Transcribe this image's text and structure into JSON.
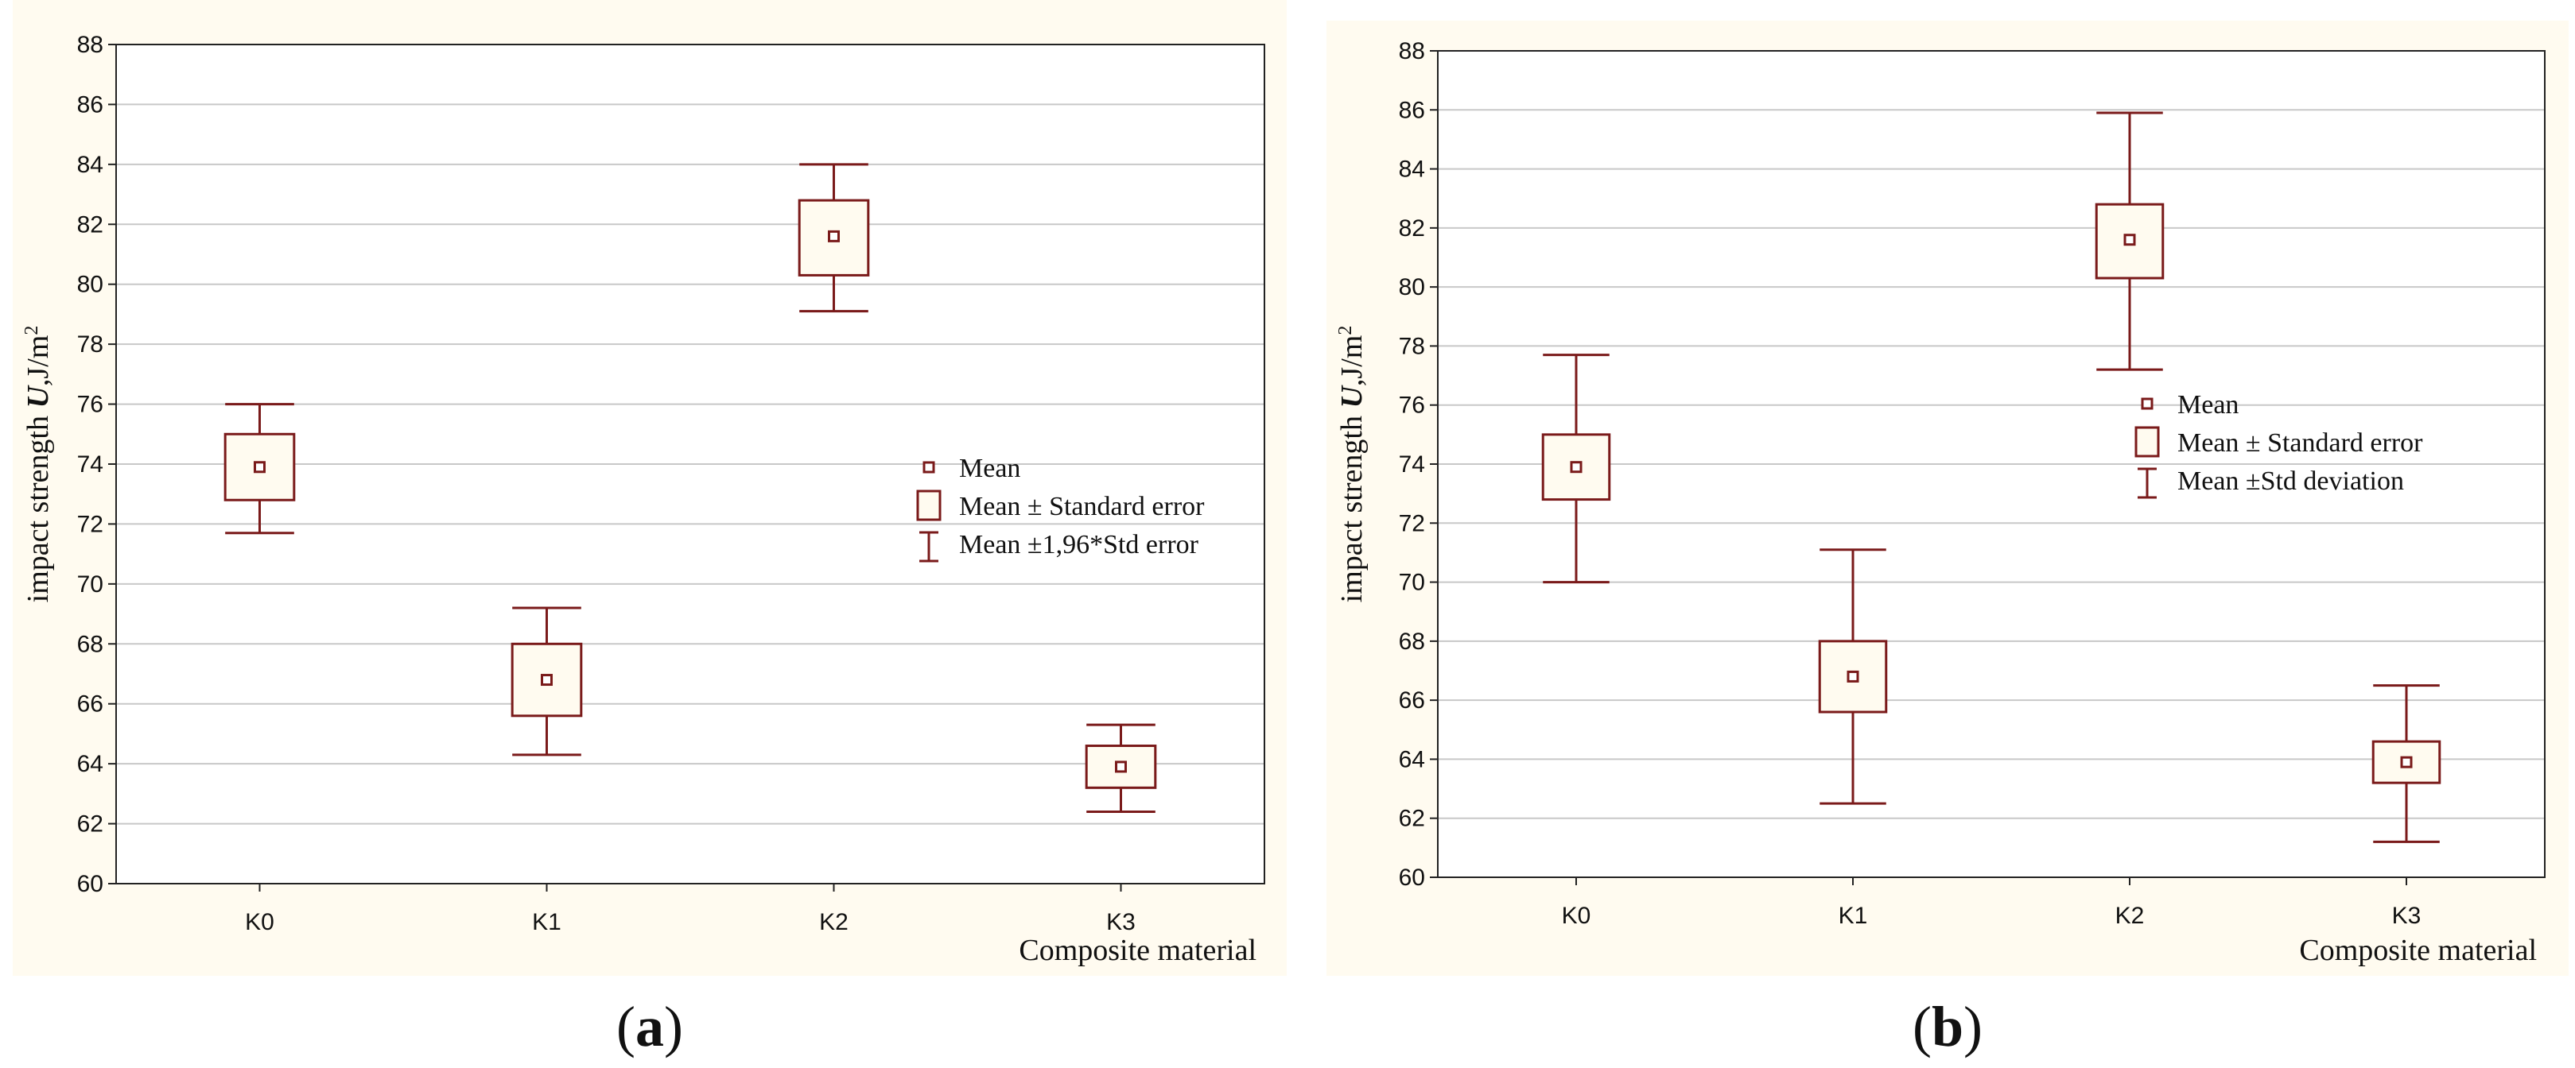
{
  "chart_data": [
    {
      "panel_label": "(a)",
      "type": "box",
      "title": "",
      "xlabel": "Composite material",
      "ylabel": {
        "prefix": "impact strength ",
        "var": "U",
        "unit": ",J/m",
        "sup": "2"
      },
      "categories": [
        "K0",
        "K1",
        "K2",
        "K3"
      ],
      "ylim": [
        60,
        88
      ],
      "yticks": [
        "60",
        "62",
        "64",
        "66",
        "68",
        "70",
        "72",
        "74",
        "76",
        "78",
        "80",
        "82",
        "84",
        "86",
        "88"
      ],
      "grid": true,
      "legend_position": "right",
      "legend": [
        "Mean",
        "Mean  ± Standard error",
        "Mean  ±1,96*Std error"
      ],
      "series": [
        {
          "category": "K0",
          "mean": 73.9,
          "box_low": 72.8,
          "box_high": 75.0,
          "whisker_low": 71.7,
          "whisker_high": 76.0
        },
        {
          "category": "K1",
          "mean": 66.8,
          "box_low": 65.6,
          "box_high": 68.0,
          "whisker_low": 64.3,
          "whisker_high": 69.2
        },
        {
          "category": "K2",
          "mean": 81.6,
          "box_low": 80.3,
          "box_high": 82.8,
          "whisker_low": 79.1,
          "whisker_high": 84.0
        },
        {
          "category": "K3",
          "mean": 63.9,
          "box_low": 63.2,
          "box_high": 64.6,
          "whisker_low": 62.4,
          "whisker_high": 65.3
        }
      ]
    },
    {
      "panel_label": "(b)",
      "type": "box",
      "title": "",
      "xlabel": "Composite material",
      "ylabel": {
        "prefix": "impact strength ",
        "var": "U",
        "unit": ",J/m",
        "sup": "2"
      },
      "categories": [
        "K0",
        "K1",
        "K2",
        "K3"
      ],
      "ylim": [
        60,
        88
      ],
      "yticks": [
        "60",
        "62",
        "64",
        "66",
        "68",
        "70",
        "72",
        "74",
        "76",
        "78",
        "80",
        "82",
        "84",
        "86",
        "88"
      ],
      "grid": true,
      "legend_position": "right",
      "legend": [
        "Mean",
        "Mean  ± Standard error",
        "Mean  ±Std deviation"
      ],
      "series": [
        {
          "category": "K0",
          "mean": 73.9,
          "box_low": 72.8,
          "box_high": 75.0,
          "whisker_low": 70.0,
          "whisker_high": 77.7
        },
        {
          "category": "K1",
          "mean": 66.8,
          "box_low": 65.6,
          "box_high": 68.0,
          "whisker_low": 62.5,
          "whisker_high": 71.1
        },
        {
          "category": "K2",
          "mean": 81.6,
          "box_low": 80.3,
          "box_high": 82.8,
          "whisker_low": 77.2,
          "whisker_high": 85.9
        },
        {
          "category": "K3",
          "mean": 63.9,
          "box_low": 63.2,
          "box_high": 64.6,
          "whisker_low": 61.2,
          "whisker_high": 66.5
        }
      ]
    }
  ]
}
